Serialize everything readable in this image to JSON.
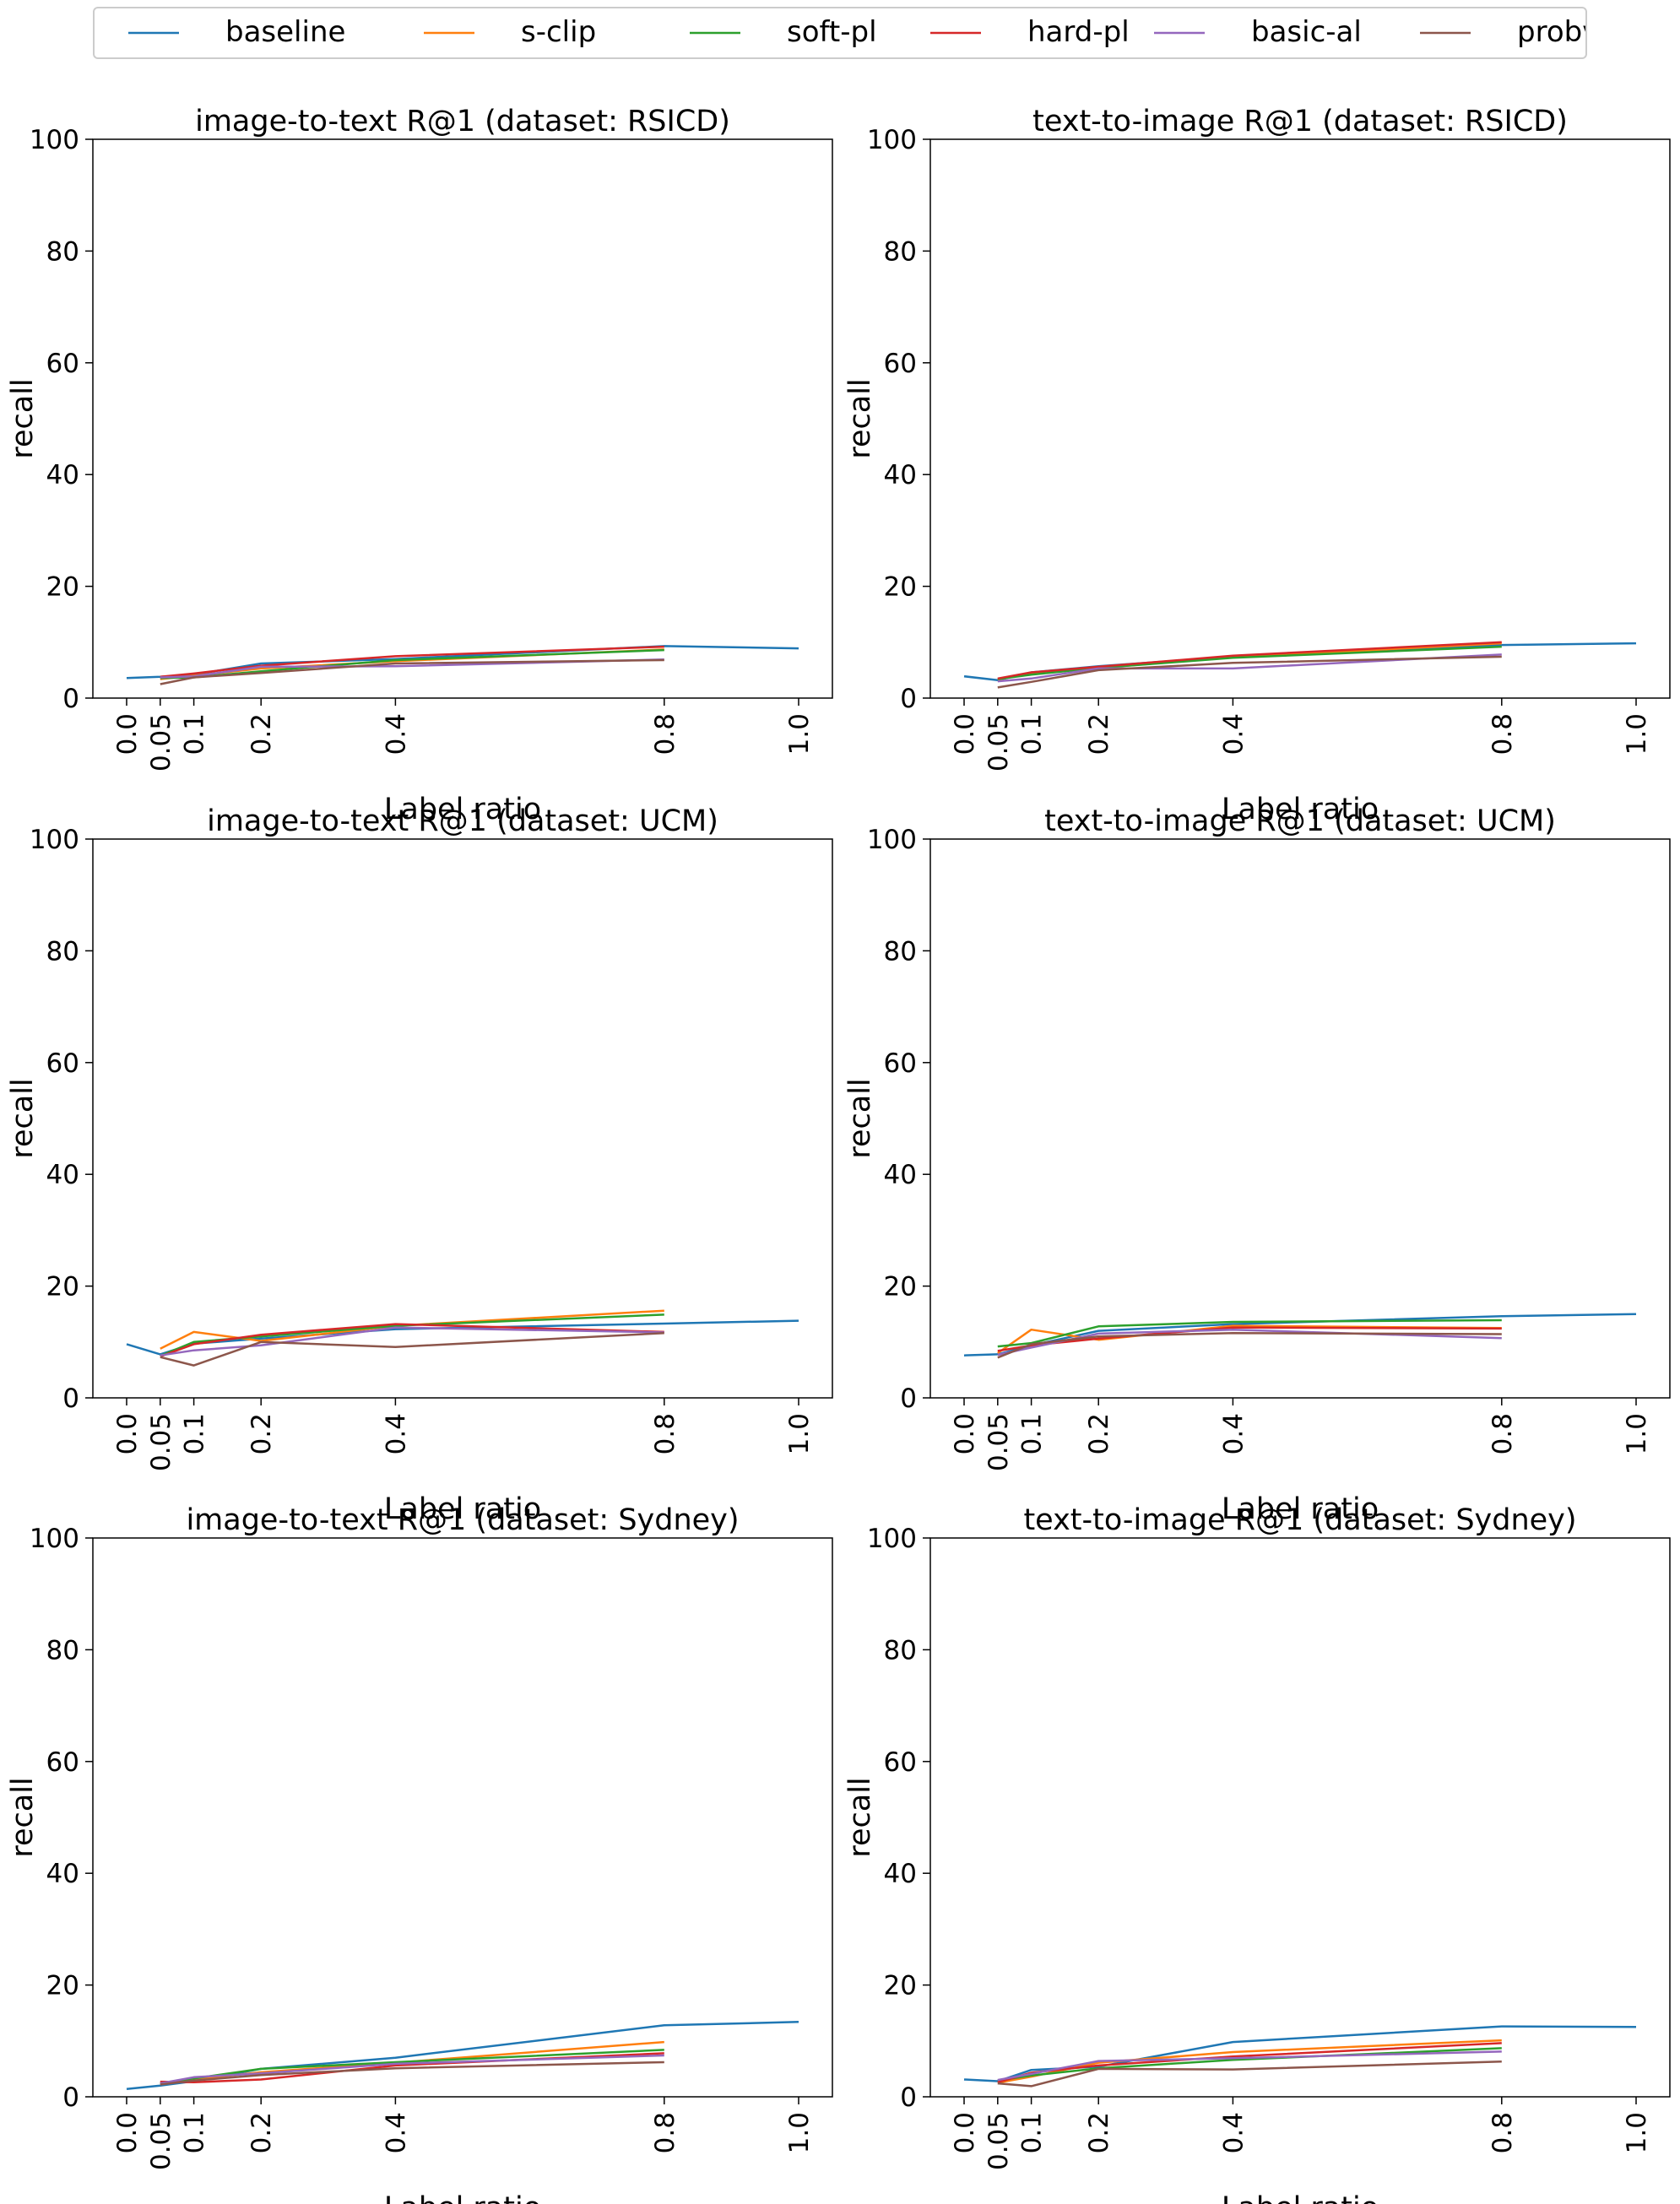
{
  "legend": [
    "baseline",
    "s-clip",
    "soft-pl",
    "hard-pl",
    "basic-al",
    "probvlm"
  ],
  "colors": {
    "baseline": "#1f77b4",
    "s-clip": "#ff7f0e",
    "soft-pl": "#2ca02c",
    "hard-pl": "#d62728",
    "basic-al": "#9467bd",
    "probvlm": "#8c564b"
  },
  "chart_data": [
    {
      "type": "line",
      "title": "image-to-text R@1 (dataset: RSICD)",
      "xlabel": "Label ratio",
      "ylabel": "recall",
      "xticks": [
        "0.0",
        "0.05",
        "0.1",
        "0.2",
        "0.4",
        "0.8",
        "1.0"
      ],
      "yticks": [
        "0",
        "20",
        "40",
        "60",
        "80",
        "100"
      ],
      "xlim": [
        0,
        1
      ],
      "ylim": [
        0,
        100
      ],
      "grid": false,
      "series": [
        {
          "name": "baseline",
          "x": [
            0.0,
            0.05,
            0.1,
            0.2,
            0.4,
            0.8,
            1.0
          ],
          "y": [
            3.6,
            3.8,
            4.2,
            6.2,
            7.0,
            9.3,
            8.9
          ]
        },
        {
          "name": "s-clip",
          "x": [
            0.05,
            0.1,
            0.2,
            0.4,
            0.8
          ],
          "y": [
            3.4,
            4.0,
            5.3,
            6.6,
            8.7
          ]
        },
        {
          "name": "soft-pl",
          "x": [
            0.05,
            0.1,
            0.2,
            0.4,
            0.8
          ],
          "y": [
            3.6,
            3.7,
            4.8,
            6.8,
            8.6
          ]
        },
        {
          "name": "hard-pl",
          "x": [
            0.05,
            0.1,
            0.2,
            0.4,
            0.8
          ],
          "y": [
            3.8,
            4.4,
            5.8,
            7.5,
            9.2
          ]
        },
        {
          "name": "basic-al",
          "x": [
            0.05,
            0.1,
            0.2,
            0.4,
            0.8
          ],
          "y": [
            3.7,
            3.9,
            5.6,
            5.7,
            6.9
          ]
        },
        {
          "name": "probvlm",
          "x": [
            0.05,
            0.1,
            0.2,
            0.4,
            0.8
          ],
          "y": [
            2.5,
            3.7,
            4.5,
            6.2,
            6.8
          ]
        }
      ]
    },
    {
      "type": "line",
      "title": "text-to-image R@1 (dataset: RSICD)",
      "xlabel": "Label ratio",
      "ylabel": "recall",
      "xticks": [
        "0.0",
        "0.05",
        "0.1",
        "0.2",
        "0.4",
        "0.8",
        "1.0"
      ],
      "yticks": [
        "0",
        "20",
        "40",
        "60",
        "80",
        "100"
      ],
      "xlim": [
        0,
        1
      ],
      "ylim": [
        0,
        100
      ],
      "grid": false,
      "series": [
        {
          "name": "baseline",
          "x": [
            0.0,
            0.05,
            0.1,
            0.2,
            0.4,
            0.8,
            1.0
          ],
          "y": [
            3.9,
            3.2,
            4.6,
            5.7,
            7.4,
            9.5,
            9.8
          ]
        },
        {
          "name": "s-clip",
          "x": [
            0.05,
            0.1,
            0.2,
            0.4,
            0.8
          ],
          "y": [
            3.3,
            4.5,
            5.4,
            7.3,
            9.8
          ]
        },
        {
          "name": "soft-pl",
          "x": [
            0.05,
            0.1,
            0.2,
            0.4,
            0.8
          ],
          "y": [
            3.4,
            4.2,
            5.4,
            7.2,
            9.2
          ]
        },
        {
          "name": "hard-pl",
          "x": [
            0.05,
            0.1,
            0.2,
            0.4,
            0.8
          ],
          "y": [
            3.5,
            4.6,
            5.6,
            7.6,
            10.0
          ]
        },
        {
          "name": "basic-al",
          "x": [
            0.05,
            0.1,
            0.2,
            0.4,
            0.8
          ],
          "y": [
            3.0,
            3.5,
            5.3,
            5.3,
            7.8
          ]
        },
        {
          "name": "probvlm",
          "x": [
            0.05,
            0.1,
            0.2,
            0.4,
            0.8
          ],
          "y": [
            1.9,
            2.9,
            5.0,
            6.3,
            7.4
          ]
        }
      ]
    },
    {
      "type": "line",
      "title": "image-to-text R@1 (dataset: UCM)",
      "xlabel": "Label ratio",
      "ylabel": "recall",
      "xticks": [
        "0.0",
        "0.05",
        "0.1",
        "0.2",
        "0.4",
        "0.8",
        "1.0"
      ],
      "yticks": [
        "0",
        "20",
        "40",
        "60",
        "80",
        "100"
      ],
      "xlim": [
        0,
        1
      ],
      "ylim": [
        0,
        100
      ],
      "grid": false,
      "series": [
        {
          "name": "baseline",
          "x": [
            0.0,
            0.05,
            0.1,
            0.2,
            0.4,
            0.8,
            1.0
          ],
          "y": [
            9.6,
            7.8,
            9.7,
            10.6,
            12.3,
            13.3,
            13.8
          ]
        },
        {
          "name": "s-clip",
          "x": [
            0.05,
            0.1,
            0.2,
            0.4,
            0.8
          ],
          "y": [
            8.8,
            11.8,
            10.2,
            12.9,
            15.6
          ]
        },
        {
          "name": "soft-pl",
          "x": [
            0.05,
            0.1,
            0.2,
            0.4,
            0.8
          ],
          "y": [
            7.5,
            10.0,
            11.0,
            12.9,
            14.9
          ]
        },
        {
          "name": "hard-pl",
          "x": [
            0.05,
            0.1,
            0.2,
            0.4,
            0.8
          ],
          "y": [
            7.4,
            9.6,
            11.3,
            13.2,
            11.8
          ]
        },
        {
          "name": "basic-al",
          "x": [
            0.05,
            0.1,
            0.2,
            0.4,
            0.8
          ],
          "y": [
            7.6,
            8.5,
            9.4,
            12.6,
            11.7
          ]
        },
        {
          "name": "probvlm",
          "x": [
            0.05,
            0.1,
            0.2,
            0.4,
            0.8
          ],
          "y": [
            7.3,
            5.8,
            10.0,
            9.1,
            11.6
          ]
        }
      ]
    },
    {
      "type": "line",
      "title": "text-to-image R@1 (dataset: UCM)",
      "xlabel": "Label ratio",
      "ylabel": "recall",
      "xticks": [
        "0.0",
        "0.05",
        "0.1",
        "0.2",
        "0.4",
        "0.8",
        "1.0"
      ],
      "yticks": [
        "0",
        "20",
        "40",
        "60",
        "80",
        "100"
      ],
      "xlim": [
        0,
        1
      ],
      "ylim": [
        0,
        100
      ],
      "grid": false,
      "series": [
        {
          "name": "baseline",
          "x": [
            0.0,
            0.05,
            0.1,
            0.2,
            0.4,
            0.8,
            1.0
          ],
          "y": [
            7.6,
            7.8,
            9.4,
            12.0,
            13.2,
            14.6,
            15.0
          ]
        },
        {
          "name": "s-clip",
          "x": [
            0.05,
            0.1,
            0.2,
            0.4,
            0.8
          ],
          "y": [
            8.0,
            12.2,
            10.4,
            12.9,
            12.5
          ]
        },
        {
          "name": "soft-pl",
          "x": [
            0.05,
            0.1,
            0.2,
            0.4,
            0.8
          ],
          "y": [
            9.2,
            9.8,
            12.8,
            13.6,
            13.9
          ]
        },
        {
          "name": "hard-pl",
          "x": [
            0.05,
            0.1,
            0.2,
            0.4,
            0.8
          ],
          "y": [
            8.4,
            9.4,
            10.6,
            12.6,
            12.4
          ]
        },
        {
          "name": "basic-al",
          "x": [
            0.05,
            0.1,
            0.2,
            0.4,
            0.8
          ],
          "y": [
            7.7,
            9.0,
            11.5,
            12.2,
            10.7
          ]
        },
        {
          "name": "probvlm",
          "x": [
            0.05,
            0.1,
            0.2,
            0.4,
            0.8
          ],
          "y": [
            7.2,
            9.6,
            11.0,
            11.6,
            11.4
          ]
        }
      ]
    },
    {
      "type": "line",
      "title": "image-to-text R@1 (dataset: Sydney)",
      "xlabel": "Label ratio",
      "ylabel": "recall",
      "xticks": [
        "0.0",
        "0.05",
        "0.1",
        "0.2",
        "0.4",
        "0.8",
        "1.0"
      ],
      "yticks": [
        "0",
        "20",
        "40",
        "60",
        "80",
        "100"
      ],
      "xlim": [
        0,
        1
      ],
      "ylim": [
        0,
        100
      ],
      "grid": false,
      "series": [
        {
          "name": "baseline",
          "x": [
            0.0,
            0.05,
            0.1,
            0.2,
            0.4,
            0.8,
            1.0
          ],
          "y": [
            1.4,
            2.0,
            2.8,
            5.0,
            7.0,
            12.8,
            13.4
          ]
        },
        {
          "name": "s-clip",
          "x": [
            0.05,
            0.1,
            0.2,
            0.4,
            0.8
          ],
          "y": [
            2.5,
            3.1,
            4.4,
            6.1,
            9.8
          ]
        },
        {
          "name": "soft-pl",
          "x": [
            0.05,
            0.1,
            0.2,
            0.4,
            0.8
          ],
          "y": [
            2.3,
            3.3,
            5.0,
            6.2,
            8.4
          ]
        },
        {
          "name": "hard-pl",
          "x": [
            0.05,
            0.1,
            0.2,
            0.4,
            0.8
          ],
          "y": [
            2.7,
            2.6,
            3.1,
            5.6,
            7.8
          ]
        },
        {
          "name": "basic-al",
          "x": [
            0.05,
            0.1,
            0.2,
            0.4,
            0.8
          ],
          "y": [
            2.4,
            3.5,
            4.2,
            5.9,
            7.4
          ]
        },
        {
          "name": "probvlm",
          "x": [
            0.05,
            0.1,
            0.2,
            0.4,
            0.8
          ],
          "y": [
            2.2,
            2.9,
            3.9,
            5.1,
            6.2
          ]
        }
      ]
    },
    {
      "type": "line",
      "title": "text-to-image R@1 (dataset: Sydney)",
      "xlabel": "Label ratio",
      "ylabel": "recall",
      "xticks": [
        "0.0",
        "0.05",
        "0.1",
        "0.2",
        "0.4",
        "0.8",
        "1.0"
      ],
      "yticks": [
        "0",
        "20",
        "40",
        "60",
        "80",
        "100"
      ],
      "xlim": [
        0,
        1
      ],
      "ylim": [
        0,
        100
      ],
      "grid": false,
      "series": [
        {
          "name": "baseline",
          "x": [
            0.0,
            0.05,
            0.1,
            0.2,
            0.4,
            0.8,
            1.0
          ],
          "y": [
            3.1,
            2.8,
            4.8,
            5.4,
            9.8,
            12.6,
            12.5
          ]
        },
        {
          "name": "s-clip",
          "x": [
            0.05,
            0.1,
            0.2,
            0.4,
            0.8
          ],
          "y": [
            2.5,
            3.6,
            6.1,
            8.0,
            10.1
          ]
        },
        {
          "name": "soft-pl",
          "x": [
            0.05,
            0.1,
            0.2,
            0.4,
            0.8
          ],
          "y": [
            2.9,
            3.8,
            5.1,
            6.6,
            8.7
          ]
        },
        {
          "name": "hard-pl",
          "x": [
            0.05,
            0.1,
            0.2,
            0.4,
            0.8
          ],
          "y": [
            2.6,
            4.3,
            5.6,
            7.2,
            9.6
          ]
        },
        {
          "name": "basic-al",
          "x": [
            0.05,
            0.1,
            0.2,
            0.4,
            0.8
          ],
          "y": [
            3.0,
            4.1,
            6.4,
            6.9,
            8.1
          ]
        },
        {
          "name": "probvlm",
          "x": [
            0.05,
            0.1,
            0.2,
            0.4,
            0.8
          ],
          "y": [
            2.4,
            1.9,
            5.0,
            4.9,
            6.3
          ]
        }
      ]
    }
  ]
}
